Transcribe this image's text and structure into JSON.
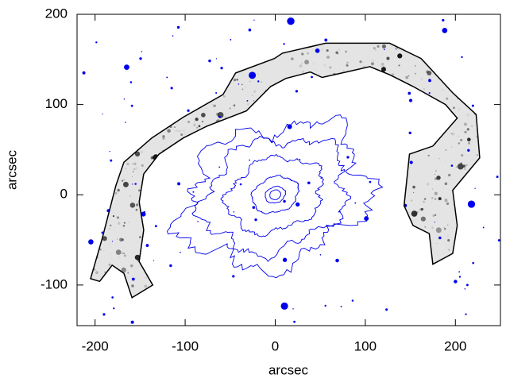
{
  "chart_data": {
    "type": "image",
    "xlabel": "arcsec",
    "ylabel": "arcsec",
    "xlim": [
      -220,
      250
    ],
    "ylim": [
      -145,
      200
    ],
    "xticks": [
      -200,
      -100,
      0,
      100,
      200
    ],
    "yticks": [
      -100,
      0,
      100,
      200
    ],
    "region": {
      "color": "#000000",
      "x": [
        -205,
        -192,
        -177,
        -168,
        -137,
        -102,
        -58,
        -44,
        -1,
        8,
        56,
        127,
        162,
        197,
        223,
        227,
        197,
        202,
        197,
        175,
        171,
        153,
        143,
        149,
        175,
        202,
        189,
        153,
        127,
        105,
        83,
        52,
        39,
        12,
        -5,
        -32,
        -76,
        -102,
        -129,
        -146,
        -151,
        -146,
        -151,
        -136,
        -159,
        -168,
        -181,
        -195
      ],
      "y": [
        -93,
        -48,
        10,
        36,
        63,
        86,
        111,
        135,
        151,
        157,
        168,
        168,
        151,
        113,
        89,
        41,
        5,
        -34,
        -65,
        -77,
        -43,
        -34,
        -12,
        45,
        54,
        85,
        100,
        120,
        133,
        142,
        137,
        130,
        136,
        129,
        120,
        93,
        76,
        63,
        45,
        23,
        -8,
        -39,
        -74,
        -100,
        -114,
        -87,
        -78,
        -96
      ]
    },
    "contour_color": "#0000ee"
  }
}
